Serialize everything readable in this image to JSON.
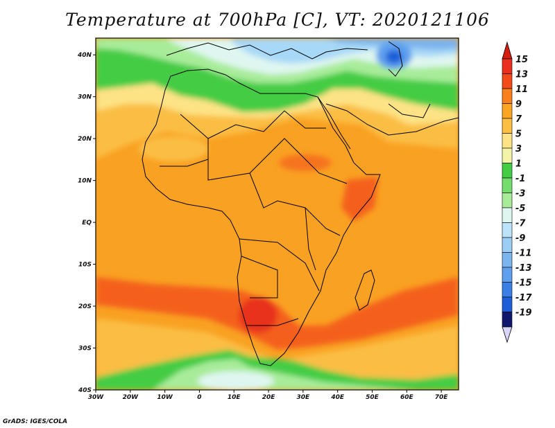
{
  "title": "Temperature at 700hPa [C], VT: 2020121106",
  "credit": "GrADS: IGES/COLA",
  "map": {
    "lon_range": [
      -30,
      75
    ],
    "lat_range": [
      -40,
      44
    ],
    "lat_ticks": [
      {
        "value": 40,
        "label": "40N"
      },
      {
        "value": 30,
        "label": "30N"
      },
      {
        "value": 20,
        "label": "20N"
      },
      {
        "value": 10,
        "label": "10N"
      },
      {
        "value": 0,
        "label": "EQ"
      },
      {
        "value": -10,
        "label": "10S"
      },
      {
        "value": -20,
        "label": "20S"
      },
      {
        "value": -30,
        "label": "30S"
      },
      {
        "value": -40,
        "label": "40S"
      }
    ],
    "lon_ticks": [
      {
        "value": -30,
        "label": "30W"
      },
      {
        "value": -20,
        "label": "20W"
      },
      {
        "value": -10,
        "label": "10W"
      },
      {
        "value": 0,
        "label": "0"
      },
      {
        "value": 10,
        "label": "10E"
      },
      {
        "value": 20,
        "label": "20E"
      },
      {
        "value": 30,
        "label": "30E"
      },
      {
        "value": 40,
        "label": "40E"
      },
      {
        "value": 50,
        "label": "50E"
      },
      {
        "value": 60,
        "label": "60E"
      },
      {
        "value": 70,
        "label": "70E"
      }
    ],
    "colors": {
      "warm_peak": "#e8301c",
      "hot": "#f4611f",
      "orange": "#f9a122",
      "light_orange": "#fbbe45",
      "yellow": "#fde385",
      "green": "#44cc44",
      "light_green": "#a8ec9a",
      "pale": "#dff6f0",
      "light_blue": "#a8d8f7",
      "blue": "#5fa0ee",
      "deep_blue": "#1e5fd8"
    }
  },
  "colorbar": {
    "levels": [
      {
        "label": "15",
        "color": "#e8301c"
      },
      {
        "label": "13",
        "color": "#f24a18"
      },
      {
        "label": "11",
        "color": "#f9801d"
      },
      {
        "label": "9",
        "color": "#fba522"
      },
      {
        "label": "7",
        "color": "#fcbe45"
      },
      {
        "label": "5",
        "color": "#fde385"
      },
      {
        "label": "3",
        "color": "#f3f4a8"
      },
      {
        "label": "1",
        "color": "#44cc44"
      },
      {
        "label": "-1",
        "color": "#74de6c"
      },
      {
        "label": "-3",
        "color": "#a8ec9a"
      },
      {
        "label": "-5",
        "color": "#dff6f0"
      },
      {
        "label": "-7",
        "color": "#bce3fa"
      },
      {
        "label": "-9",
        "color": "#9ccdf5"
      },
      {
        "label": "-11",
        "color": "#7cb4ee"
      },
      {
        "label": "-13",
        "color": "#5fa0ee"
      },
      {
        "label": "-15",
        "color": "#3a7fe4"
      },
      {
        "label": "-17",
        "color": "#1e5fd8"
      },
      {
        "label": "-19",
        "color": "#0c3ca8"
      }
    ],
    "top_arrow_color": "#d41c10",
    "bottom_arrow_color": "#d8d6f7",
    "last_band_color": "#10186c"
  }
}
